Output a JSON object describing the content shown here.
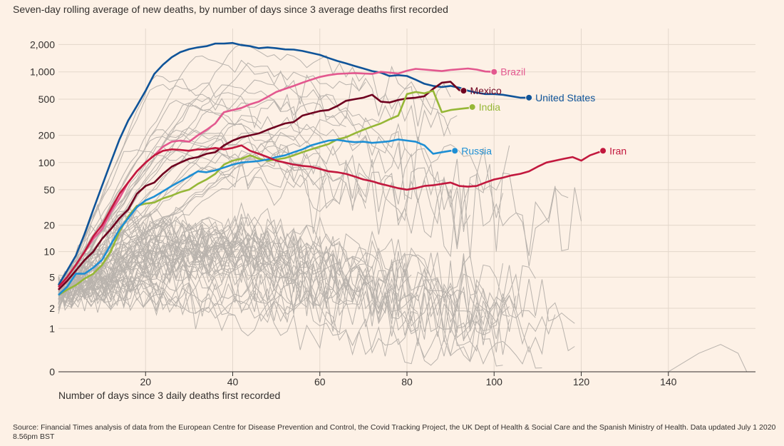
{
  "chart_data": {
    "type": "line",
    "title": "Seven-day rolling average of new deaths, by number of days since 3 average deaths first recorded",
    "xlabel": "Number of days since 3 daily deaths first recorded",
    "ylabel": "",
    "yscale": "log",
    "xlim": [
      0,
      160
    ],
    "ylim": [
      0,
      3000
    ],
    "x_ticks": [
      20,
      40,
      60,
      80,
      100,
      120,
      140
    ],
    "x_tick_labels": [
      "20",
      "40",
      "60",
      "80",
      "100",
      "120",
      "140"
    ],
    "y_ticks": [
      0,
      1,
      2,
      5,
      10,
      20,
      50,
      100,
      200,
      500,
      1000,
      2000
    ],
    "y_tick_labels": [
      "0",
      "1",
      "2",
      "5",
      "10",
      "20",
      "50",
      "100",
      "200",
      "500",
      "1,000",
      "2,000"
    ],
    "grid": true,
    "legend": "inline-end-labels",
    "background_lines": "many grey lines for other countries",
    "series": [
      {
        "name": "United States",
        "color": "#0f5499",
        "points": [
          [
            0,
            4
          ],
          [
            2,
            6
          ],
          [
            4,
            9
          ],
          [
            6,
            16
          ],
          [
            8,
            30
          ],
          [
            10,
            55
          ],
          [
            12,
            100
          ],
          [
            14,
            180
          ],
          [
            16,
            290
          ],
          [
            18,
            420
          ],
          [
            20,
            620
          ],
          [
            22,
            950
          ],
          [
            24,
            1200
          ],
          [
            26,
            1450
          ],
          [
            28,
            1650
          ],
          [
            30,
            1780
          ],
          [
            32,
            1860
          ],
          [
            34,
            1920
          ],
          [
            36,
            2050
          ],
          [
            38,
            2050
          ],
          [
            40,
            2080
          ],
          [
            42,
            1970
          ],
          [
            44,
            1920
          ],
          [
            46,
            1820
          ],
          [
            48,
            1860
          ],
          [
            50,
            1820
          ],
          [
            52,
            1770
          ],
          [
            54,
            1760
          ],
          [
            56,
            1700
          ],
          [
            58,
            1620
          ],
          [
            60,
            1540
          ],
          [
            62,
            1420
          ],
          [
            64,
            1320
          ],
          [
            66,
            1240
          ],
          [
            68,
            1160
          ],
          [
            70,
            1090
          ],
          [
            72,
            1020
          ],
          [
            74,
            980
          ],
          [
            76,
            900
          ],
          [
            78,
            920
          ],
          [
            80,
            900
          ],
          [
            82,
            820
          ],
          [
            84,
            740
          ],
          [
            86,
            700
          ],
          [
            88,
            680
          ],
          [
            90,
            700
          ],
          [
            92,
            670
          ],
          [
            94,
            620
          ],
          [
            96,
            590
          ],
          [
            98,
            570
          ],
          [
            100,
            570
          ],
          [
            102,
            560
          ],
          [
            104,
            540
          ],
          [
            106,
            520
          ],
          [
            108,
            520
          ]
        ]
      },
      {
        "name": "Brazil",
        "color": "#e3588f",
        "points": [
          [
            0,
            3.5
          ],
          [
            2,
            5
          ],
          [
            4,
            7
          ],
          [
            6,
            10
          ],
          [
            8,
            14
          ],
          [
            10,
            18
          ],
          [
            12,
            28
          ],
          [
            14,
            40
          ],
          [
            16,
            60
          ],
          [
            18,
            80
          ],
          [
            20,
            100
          ],
          [
            22,
            120
          ],
          [
            24,
            150
          ],
          [
            26,
            170
          ],
          [
            28,
            175
          ],
          [
            30,
            170
          ],
          [
            32,
            200
          ],
          [
            34,
            230
          ],
          [
            36,
            270
          ],
          [
            38,
            360
          ],
          [
            40,
            380
          ],
          [
            42,
            400
          ],
          [
            44,
            440
          ],
          [
            46,
            470
          ],
          [
            48,
            530
          ],
          [
            50,
            600
          ],
          [
            52,
            650
          ],
          [
            54,
            700
          ],
          [
            56,
            760
          ],
          [
            58,
            820
          ],
          [
            60,
            880
          ],
          [
            62,
            920
          ],
          [
            64,
            950
          ],
          [
            66,
            960
          ],
          [
            68,
            970
          ],
          [
            70,
            960
          ],
          [
            72,
            950
          ],
          [
            74,
            1000
          ],
          [
            76,
            980
          ],
          [
            78,
            960
          ],
          [
            80,
            1030
          ],
          [
            82,
            1080
          ],
          [
            84,
            1060
          ],
          [
            86,
            1040
          ],
          [
            88,
            1020
          ],
          [
            90,
            1050
          ],
          [
            92,
            1070
          ],
          [
            94,
            1090
          ],
          [
            96,
            1060
          ],
          [
            98,
            1010
          ],
          [
            100,
            1000
          ]
        ]
      },
      {
        "name": "Mexico",
        "color": "#6f001f",
        "points": [
          [
            0,
            3.5
          ],
          [
            2,
            4.5
          ],
          [
            4,
            6
          ],
          [
            6,
            8
          ],
          [
            8,
            10
          ],
          [
            10,
            14
          ],
          [
            12,
            18
          ],
          [
            14,
            24
          ],
          [
            16,
            30
          ],
          [
            18,
            45
          ],
          [
            20,
            55
          ],
          [
            22,
            60
          ],
          [
            24,
            75
          ],
          [
            26,
            90
          ],
          [
            28,
            100
          ],
          [
            30,
            110
          ],
          [
            32,
            115
          ],
          [
            34,
            125
          ],
          [
            36,
            130
          ],
          [
            38,
            155
          ],
          [
            40,
            175
          ],
          [
            42,
            190
          ],
          [
            44,
            200
          ],
          [
            46,
            210
          ],
          [
            48,
            230
          ],
          [
            50,
            250
          ],
          [
            52,
            270
          ],
          [
            54,
            280
          ],
          [
            56,
            330
          ],
          [
            58,
            350
          ],
          [
            60,
            370
          ],
          [
            62,
            380
          ],
          [
            64,
            420
          ],
          [
            66,
            480
          ],
          [
            68,
            500
          ],
          [
            70,
            520
          ],
          [
            72,
            560
          ],
          [
            74,
            470
          ],
          [
            76,
            460
          ],
          [
            78,
            490
          ],
          [
            80,
            510
          ],
          [
            82,
            520
          ],
          [
            84,
            540
          ],
          [
            86,
            650
          ],
          [
            88,
            760
          ],
          [
            90,
            780
          ],
          [
            92,
            630
          ],
          [
            93,
            620
          ]
        ]
      },
      {
        "name": "India",
        "color": "#96b737",
        "points": [
          [
            0,
            3
          ],
          [
            2,
            3.5
          ],
          [
            4,
            4
          ],
          [
            6,
            4.8
          ],
          [
            8,
            5.5
          ],
          [
            10,
            7
          ],
          [
            12,
            10
          ],
          [
            14,
            17
          ],
          [
            16,
            25
          ],
          [
            18,
            33
          ],
          [
            20,
            35
          ],
          [
            22,
            36
          ],
          [
            24,
            40
          ],
          [
            26,
            43
          ],
          [
            28,
            47
          ],
          [
            30,
            50
          ],
          [
            32,
            58
          ],
          [
            34,
            65
          ],
          [
            36,
            75
          ],
          [
            38,
            95
          ],
          [
            40,
            105
          ],
          [
            42,
            110
          ],
          [
            44,
            120
          ],
          [
            46,
            110
          ],
          [
            48,
            105
          ],
          [
            50,
            108
          ],
          [
            52,
            112
          ],
          [
            54,
            120
          ],
          [
            56,
            130
          ],
          [
            58,
            140
          ],
          [
            60,
            150
          ],
          [
            62,
            160
          ],
          [
            64,
            180
          ],
          [
            66,
            190
          ],
          [
            68,
            210
          ],
          [
            70,
            230
          ],
          [
            72,
            250
          ],
          [
            74,
            270
          ],
          [
            76,
            300
          ],
          [
            78,
            330
          ],
          [
            80,
            570
          ],
          [
            82,
            600
          ],
          [
            84,
            580
          ],
          [
            86,
            620
          ],
          [
            88,
            360
          ],
          [
            90,
            380
          ],
          [
            92,
            390
          ],
          [
            94,
            400
          ],
          [
            95,
            410
          ]
        ]
      },
      {
        "name": "Russia",
        "color": "#1e8fd4",
        "points": [
          [
            0,
            3
          ],
          [
            2,
            3.8
          ],
          [
            4,
            5.5
          ],
          [
            6,
            5.5
          ],
          [
            8,
            6.5
          ],
          [
            10,
            8
          ],
          [
            12,
            12
          ],
          [
            14,
            18
          ],
          [
            16,
            24
          ],
          [
            18,
            32
          ],
          [
            20,
            38
          ],
          [
            22,
            42
          ],
          [
            24,
            48
          ],
          [
            26,
            55
          ],
          [
            28,
            62
          ],
          [
            30,
            70
          ],
          [
            32,
            80
          ],
          [
            34,
            78
          ],
          [
            36,
            82
          ],
          [
            38,
            88
          ],
          [
            40,
            95
          ],
          [
            42,
            100
          ],
          [
            44,
            102
          ],
          [
            46,
            104
          ],
          [
            48,
            108
          ],
          [
            50,
            115
          ],
          [
            52,
            120
          ],
          [
            54,
            130
          ],
          [
            56,
            140
          ],
          [
            58,
            155
          ],
          [
            60,
            165
          ],
          [
            62,
            175
          ],
          [
            64,
            178
          ],
          [
            66,
            172
          ],
          [
            68,
            168
          ],
          [
            70,
            170
          ],
          [
            72,
            165
          ],
          [
            74,
            168
          ],
          [
            76,
            172
          ],
          [
            78,
            180
          ],
          [
            80,
            175
          ],
          [
            82,
            170
          ],
          [
            84,
            155
          ],
          [
            86,
            125
          ],
          [
            88,
            130
          ],
          [
            90,
            135
          ],
          [
            91,
            135
          ]
        ]
      },
      {
        "name": "Iran",
        "color": "#c2183e",
        "points": [
          [
            0,
            3.8
          ],
          [
            2,
            5
          ],
          [
            4,
            7
          ],
          [
            6,
            10
          ],
          [
            8,
            15
          ],
          [
            10,
            20
          ],
          [
            12,
            30
          ],
          [
            14,
            45
          ],
          [
            16,
            60
          ],
          [
            18,
            80
          ],
          [
            20,
            100
          ],
          [
            22,
            120
          ],
          [
            24,
            135
          ],
          [
            26,
            140
          ],
          [
            28,
            138
          ],
          [
            30,
            135
          ],
          [
            32,
            140
          ],
          [
            34,
            140
          ],
          [
            36,
            145
          ],
          [
            38,
            140
          ],
          [
            40,
            145
          ],
          [
            42,
            155
          ],
          [
            44,
            135
          ],
          [
            46,
            125
          ],
          [
            48,
            115
          ],
          [
            50,
            105
          ],
          [
            52,
            100
          ],
          [
            54,
            95
          ],
          [
            56,
            92
          ],
          [
            58,
            90
          ],
          [
            60,
            85
          ],
          [
            62,
            80
          ],
          [
            64,
            78
          ],
          [
            66,
            75
          ],
          [
            68,
            70
          ],
          [
            70,
            65
          ],
          [
            72,
            62
          ],
          [
            74,
            58
          ],
          [
            76,
            55
          ],
          [
            78,
            52
          ],
          [
            80,
            50
          ],
          [
            82,
            52
          ],
          [
            84,
            55
          ],
          [
            86,
            56
          ],
          [
            88,
            58
          ],
          [
            90,
            60
          ],
          [
            92,
            55
          ],
          [
            94,
            54
          ],
          [
            96,
            55
          ],
          [
            98,
            60
          ],
          [
            100,
            65
          ],
          [
            102,
            68
          ],
          [
            104,
            72
          ],
          [
            106,
            75
          ],
          [
            108,
            80
          ],
          [
            110,
            90
          ],
          [
            112,
            100
          ],
          [
            114,
            105
          ],
          [
            116,
            110
          ],
          [
            118,
            115
          ],
          [
            120,
            105
          ],
          [
            122,
            120
          ],
          [
            124,
            130
          ],
          [
            125,
            135
          ]
        ]
      }
    ]
  },
  "source_note": "Source: Financial Times analysis of data from the European Centre for Disease Prevention and Control, the Covid Tracking Project, the UK Dept of Health & Social Care and the Spanish Ministry of Health. Data updated July 1 2020 8.56pm BST",
  "colors": {
    "background": "#fdf1e6",
    "grid": "#e3d7cb",
    "background_line": "#b9b3ad",
    "axis": "#33302e"
  }
}
